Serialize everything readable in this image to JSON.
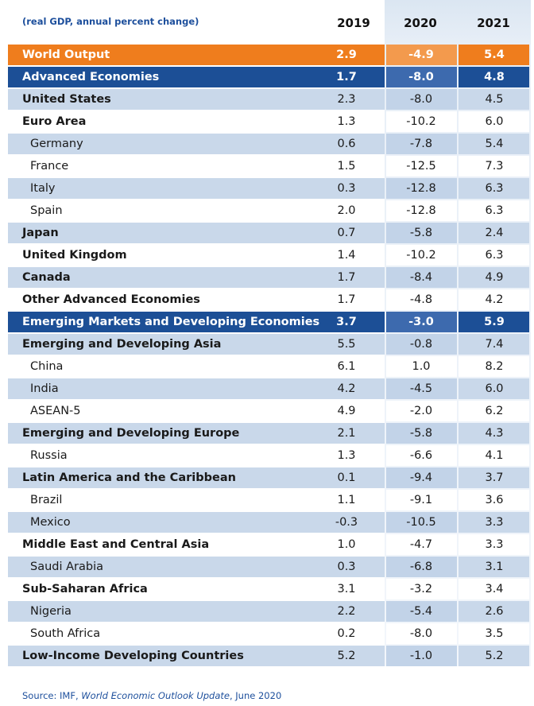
{
  "chart_data": {
    "type": "table",
    "subtitle": "(real GDP, annual percent change)",
    "columns": [
      "2019",
      "2020",
      "2021"
    ],
    "rows": [
      {
        "label": "World Output",
        "values": [
          "2.9",
          "-4.9",
          "5.4"
        ],
        "style": "orange",
        "indent": false
      },
      {
        "label": "Advanced Economies",
        "values": [
          "1.7",
          "-8.0",
          "4.8"
        ],
        "style": "navy",
        "indent": false
      },
      {
        "label": "United States",
        "values": [
          "2.3",
          "-8.0",
          "4.5"
        ],
        "style": "shaded",
        "indent": false,
        "bold": true
      },
      {
        "label": "Euro Area",
        "values": [
          "1.3",
          "-10.2",
          "6.0"
        ],
        "style": "plain",
        "indent": false,
        "bold": true
      },
      {
        "label": "Germany",
        "values": [
          "0.6",
          "-7.8",
          "5.4"
        ],
        "style": "shaded",
        "indent": true
      },
      {
        "label": "France",
        "values": [
          "1.5",
          "-12.5",
          "7.3"
        ],
        "style": "plain",
        "indent": true
      },
      {
        "label": "Italy",
        "values": [
          "0.3",
          "-12.8",
          "6.3"
        ],
        "style": "shaded",
        "indent": true
      },
      {
        "label": "Spain",
        "values": [
          "2.0",
          "-12.8",
          "6.3"
        ],
        "style": "plain",
        "indent": true
      },
      {
        "label": "Japan",
        "values": [
          "0.7",
          "-5.8",
          "2.4"
        ],
        "style": "shaded",
        "indent": false,
        "bold": true
      },
      {
        "label": "United Kingdom",
        "values": [
          "1.4",
          "-10.2",
          "6.3"
        ],
        "style": "plain",
        "indent": false,
        "bold": true
      },
      {
        "label": "Canada",
        "values": [
          "1.7",
          "-8.4",
          "4.9"
        ],
        "style": "shaded",
        "indent": false,
        "bold": true
      },
      {
        "label": "Other Advanced Economies",
        "values": [
          "1.7",
          "-4.8",
          "4.2"
        ],
        "style": "plain",
        "indent": false,
        "bold": true
      },
      {
        "label": "Emerging Markets and Developing Economies",
        "values": [
          "3.7",
          "-3.0",
          "5.9"
        ],
        "style": "navy",
        "indent": false
      },
      {
        "label": "Emerging and Developing Asia",
        "values": [
          "5.5",
          "-0.8",
          "7.4"
        ],
        "style": "shaded",
        "indent": false,
        "bold": true
      },
      {
        "label": "China",
        "values": [
          "6.1",
          "1.0",
          "8.2"
        ],
        "style": "plain",
        "indent": true
      },
      {
        "label": "India",
        "values": [
          "4.2",
          "-4.5",
          "6.0"
        ],
        "style": "shaded",
        "indent": true
      },
      {
        "label": "ASEAN-5",
        "values": [
          "4.9",
          "-2.0",
          "6.2"
        ],
        "style": "plain",
        "indent": true
      },
      {
        "label": "Emerging and Developing Europe",
        "values": [
          "2.1",
          "-5.8",
          "4.3"
        ],
        "style": "shaded",
        "indent": false,
        "bold": true
      },
      {
        "label": "Russia",
        "values": [
          "1.3",
          "-6.6",
          "4.1"
        ],
        "style": "plain",
        "indent": true
      },
      {
        "label": "Latin America and the Caribbean",
        "values": [
          "0.1",
          "-9.4",
          "3.7"
        ],
        "style": "shaded",
        "indent": false,
        "bold": true
      },
      {
        "label": "Brazil",
        "values": [
          "1.1",
          "-9.1",
          "3.6"
        ],
        "style": "plain",
        "indent": true
      },
      {
        "label": "Mexico",
        "values": [
          "-0.3",
          "-10.5",
          "3.3"
        ],
        "style": "shaded",
        "indent": true
      },
      {
        "label": "Middle East and Central Asia",
        "values": [
          "1.0",
          "-4.7",
          "3.3"
        ],
        "style": "plain",
        "indent": false,
        "bold": true
      },
      {
        "label": "Saudi Arabia",
        "values": [
          "0.3",
          "-6.8",
          "3.1"
        ],
        "style": "shaded",
        "indent": true
      },
      {
        "label": "Sub-Saharan Africa",
        "values": [
          "3.1",
          "-3.2",
          "3.4"
        ],
        "style": "plain",
        "indent": false,
        "bold": true
      },
      {
        "label": "Nigeria",
        "values": [
          "2.2",
          "-5.4",
          "2.6"
        ],
        "style": "shaded",
        "indent": true
      },
      {
        "label": "South Africa",
        "values": [
          "0.2",
          "-8.0",
          "3.5"
        ],
        "style": "plain",
        "indent": true
      },
      {
        "label": "Low-Income Developing Countries",
        "values": [
          "5.2",
          "-1.0",
          "5.2"
        ],
        "style": "shaded",
        "indent": false,
        "bold": true
      }
    ]
  },
  "source": {
    "prefix": "Source: IMF, ",
    "publication": "World Economic Outlook Update",
    "suffix": ", June 2020"
  },
  "colors": {
    "orange": "#ef7d1d",
    "navy": "#1c4f96",
    "shaded": "#c9d8ea",
    "accent_text": "#1d4f9c"
  }
}
